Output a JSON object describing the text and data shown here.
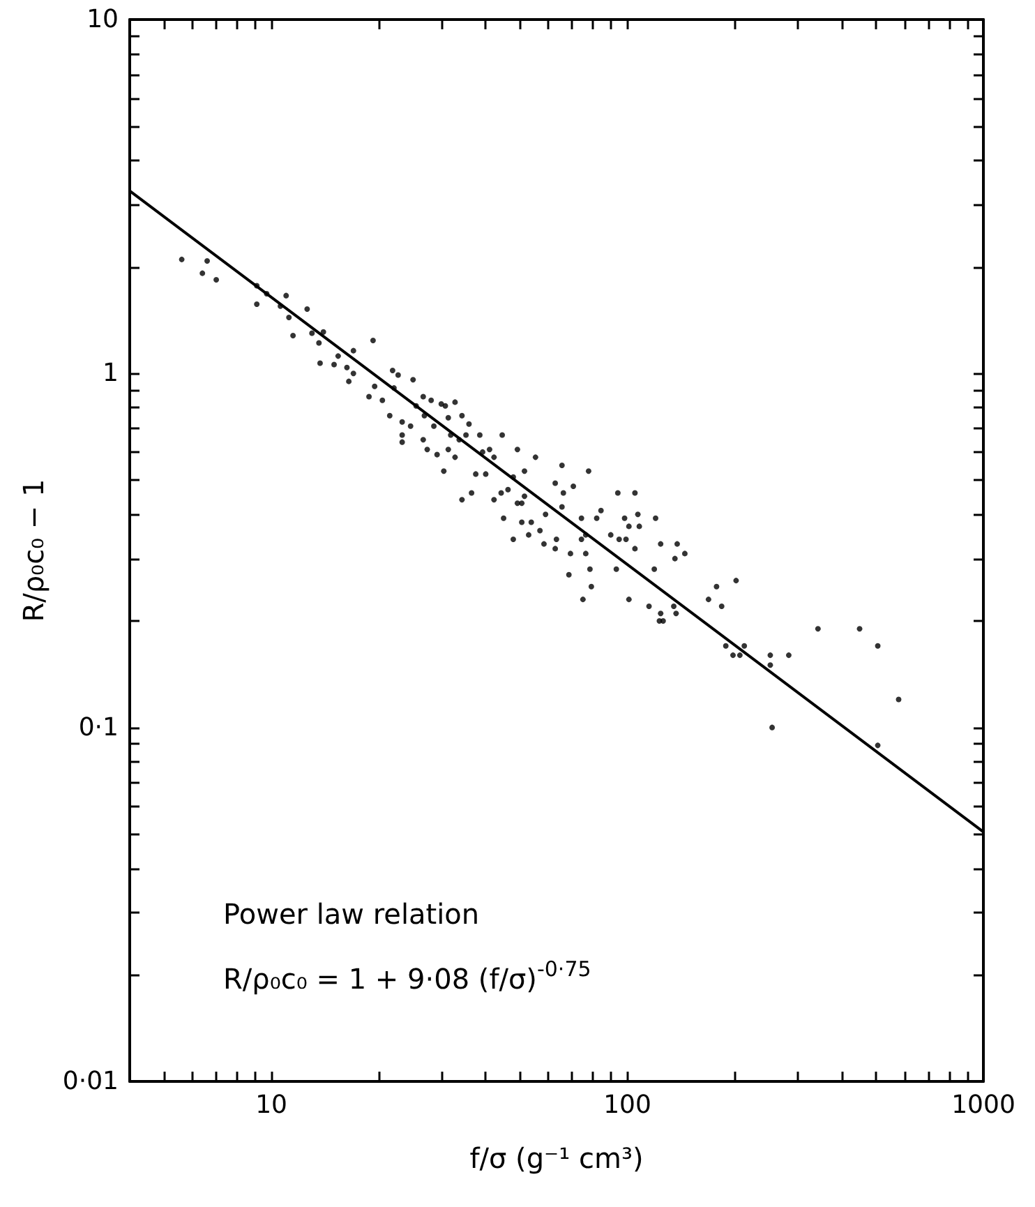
{
  "chart_data": {
    "type": "scatter",
    "xlabel": "f/σ (g⁻¹ cm³)",
    "ylabel": "R/ρ₀c₀ − 1",
    "annotations": [
      "Power law relation",
      "R/ρ₀c₀ = 1 + 9·08 (f/σ)$^{-0·75}$"
    ],
    "log": "xy",
    "grid": false,
    "xlim": [
      4,
      1000
    ],
    "ylim": [
      0.01,
      10
    ],
    "xticks": [
      {
        "value": 5,
        "label": null
      },
      {
        "value": 6,
        "label": null
      },
      {
        "value": 7,
        "label": null
      },
      {
        "value": 8,
        "label": null
      },
      {
        "value": 9,
        "label": null
      },
      10,
      {
        "value": 20,
        "label": null
      },
      {
        "value": 30,
        "label": null
      },
      {
        "value": 40,
        "label": null
      },
      {
        "value": 50,
        "label": null
      },
      {
        "value": 60,
        "label": null
      },
      {
        "value": 70,
        "label": null
      },
      {
        "value": 80,
        "label": null
      },
      {
        "value": 90,
        "label": null
      },
      100,
      {
        "value": 200,
        "label": null
      },
      {
        "value": 300,
        "label": null
      },
      {
        "value": 400,
        "label": null
      },
      {
        "value": 500,
        "label": null
      },
      {
        "value": 600,
        "label": null
      },
      {
        "value": 700,
        "label": null
      },
      {
        "value": 800,
        "label": null
      },
      {
        "value": 900,
        "label": null
      },
      1000
    ],
    "yticks": [
      {
        "value": 0.01,
        "label": "0·01"
      },
      {
        "value": 0.02,
        "label": null
      },
      {
        "value": 0.03,
        "label": null
      },
      {
        "value": 0.04,
        "label": null
      },
      {
        "value": 0.05,
        "label": null
      },
      {
        "value": 0.06,
        "label": null
      },
      {
        "value": 0.07,
        "label": null
      },
      {
        "value": 0.08,
        "label": null
      },
      {
        "value": 0.09,
        "label": null
      },
      {
        "value": 0.1,
        "label": "0·1"
      },
      {
        "value": 0.2,
        "label": null
      },
      {
        "value": 0.3,
        "label": null
      },
      {
        "value": 0.4,
        "label": null
      },
      {
        "value": 0.5,
        "label": null
      },
      {
        "value": 0.6,
        "label": null
      },
      {
        "value": 0.7,
        "label": null
      },
      {
        "value": 0.8,
        "label": null
      },
      {
        "value": 0.9,
        "label": null
      },
      1,
      {
        "value": 2,
        "label": null
      },
      {
        "value": 3,
        "label": null
      },
      {
        "value": 4,
        "label": null
      },
      {
        "value": 5,
        "label": null
      },
      {
        "value": 6,
        "label": null
      },
      {
        "value": 7,
        "label": null
      },
      {
        "value": 8,
        "label": null
      },
      {
        "value": 9,
        "label": null
      },
      10
    ],
    "series": [
      {
        "color": "#000000",
        "marker": "circle",
        "x": [
          5.6,
          6.6,
          6.4,
          7.0,
          9.1,
          9.7,
          11.0,
          9.1,
          10.6,
          11.2,
          12.6,
          11.5,
          13.0,
          14.0,
          13.6,
          15.4,
          17.0,
          19.3,
          13.7,
          15.0,
          16.3,
          17.0,
          16.5,
          19.5,
          18.8,
          21.9,
          22.7,
          22.1,
          20.5,
          21.5,
          23.3,
          24.6,
          25.0,
          26.7,
          25.5,
          28.1,
          30.0,
          26.9,
          28.6,
          23.3,
          23.3,
          26.7,
          27.4,
          29.2,
          30.8,
          32.8,
          31.4,
          34.3,
          35.9,
          31.9,
          33.7,
          35.2,
          31.4,
          32.8,
          38.5,
          44.5,
          41.0,
          39.2,
          42.2,
          30.5,
          37.5,
          40.0,
          49.1,
          47.8,
          51.4,
          34.3,
          36.5,
          42.2,
          44.2,
          46.2,
          49.1,
          44.9,
          50.5,
          47.8,
          52.8,
          55.2,
          65.5,
          77.8,
          51.4,
          62.7,
          70.5,
          66.1,
          94.0,
          105,
          50.5,
          58.9,
          65.5,
          74.3,
          84.3,
          82.0,
          98.2,
          107,
          120,
          53.7,
          56.8,
          58.3,
          63.2,
          62.7,
          74.3,
          76.4,
          89.8,
          94.8,
          99.1,
          101,
          108,
          69.2,
          76.4,
          105,
          124,
          138,
          145,
          136,
          68.5,
          78.5,
          93.1,
          119,
          79.2,
          75.0,
          101,
          115,
          135,
          124,
          137,
          123,
          126,
          169,
          178,
          202,
          184,
          189,
          198,
          207,
          213,
          252,
          252,
          284,
          343,
          449,
          505,
          255,
          578,
          505
        ],
        "values": [
          2.1,
          2.08,
          1.92,
          1.84,
          1.77,
          1.68,
          1.66,
          1.57,
          1.55,
          1.44,
          1.52,
          1.28,
          1.3,
          1.31,
          1.22,
          1.12,
          1.16,
          1.24,
          1.07,
          1.06,
          1.04,
          1.0,
          0.95,
          0.92,
          0.86,
          1.02,
          0.99,
          0.91,
          0.84,
          0.76,
          0.73,
          0.71,
          0.96,
          0.86,
          0.81,
          0.84,
          0.82,
          0.76,
          0.71,
          0.67,
          0.64,
          0.65,
          0.61,
          0.59,
          0.81,
          0.83,
          0.75,
          0.76,
          0.72,
          0.67,
          0.65,
          0.67,
          0.61,
          0.58,
          0.67,
          0.67,
          0.61,
          0.6,
          0.58,
          0.53,
          0.52,
          0.52,
          0.61,
          0.51,
          0.53,
          0.44,
          0.46,
          0.44,
          0.46,
          0.47,
          0.43,
          0.39,
          0.38,
          0.34,
          0.35,
          0.58,
          0.55,
          0.53,
          0.45,
          0.49,
          0.48,
          0.46,
          0.46,
          0.46,
          0.43,
          0.4,
          0.42,
          0.39,
          0.41,
          0.39,
          0.39,
          0.4,
          0.39,
          0.38,
          0.36,
          0.33,
          0.34,
          0.32,
          0.34,
          0.35,
          0.35,
          0.34,
          0.34,
          0.37,
          0.37,
          0.31,
          0.31,
          0.32,
          0.33,
          0.33,
          0.31,
          0.3,
          0.27,
          0.28,
          0.28,
          0.28,
          0.25,
          0.23,
          0.23,
          0.22,
          0.22,
          0.21,
          0.21,
          0.2,
          0.2,
          0.23,
          0.25,
          0.26,
          0.22,
          0.17,
          0.16,
          0.16,
          0.17,
          0.16,
          0.15,
          0.16,
          0.19,
          0.19,
          0.17,
          0.1,
          0.12,
          0.089
        ]
      },
      {
        "type": "line",
        "color": "#000000",
        "marker": "none",
        "line_style": "solid",
        "x": [
          4,
          1000
        ],
        "values": [
          3.28,
          0.0507
        ]
      }
    ]
  }
}
